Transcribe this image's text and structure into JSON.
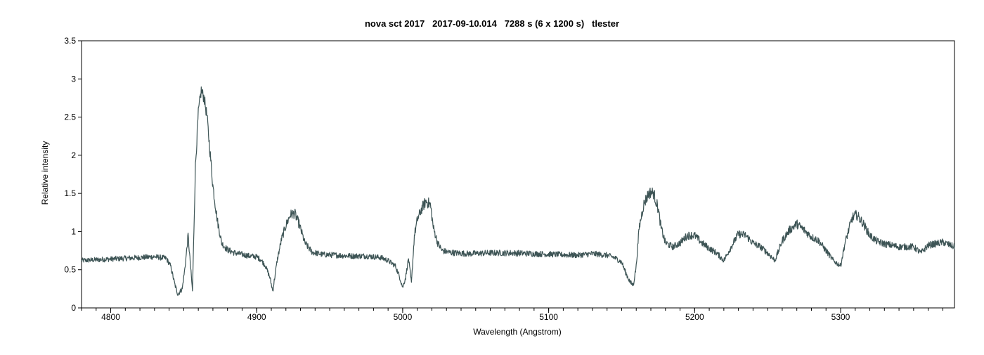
{
  "chart_data": {
    "type": "line",
    "title": "nova sct 2017   2017-09-10.014   7288 s (6 x 1200 s)   tlester",
    "xlabel": "Wavelength (Angstrom)",
    "ylabel": "Relative intensity",
    "xlim": [
      4780,
      5378
    ],
    "ylim": [
      0,
      3.5
    ],
    "xticks": [
      4800,
      4900,
      5000,
      5100,
      5200,
      5300
    ],
    "yticks": [
      0,
      0.5,
      1,
      1.5,
      2,
      2.5,
      3,
      3.5
    ],
    "ytick_labels": [
      "0",
      "0.5",
      "1",
      "1.5",
      "2",
      "2.5",
      "3",
      "3.5"
    ],
    "x_minor_step": 10,
    "grid": false,
    "line_color": "#3d5455",
    "series": [
      {
        "x": [
          4780,
          4790,
          4800,
          4810,
          4820,
          4830,
          4838,
          4841,
          4844,
          4846,
          4849,
          4851,
          4853,
          4856,
          4858,
          4860,
          4862,
          4864,
          4866,
          4868,
          4870,
          4873,
          4876,
          4880,
          4885,
          4890,
          4895,
          4900,
          4903,
          4906,
          4909,
          4911,
          4914,
          4917,
          4920,
          4923,
          4926,
          4929,
          4933,
          4938,
          4945,
          4955,
          4965,
          4975,
          4985,
          4990,
          4995,
          4998,
          5000,
          5002,
          5004,
          5006,
          5008,
          5010,
          5013,
          5016,
          5019,
          5021,
          5024,
          5027,
          5031,
          5036,
          5045,
          5060,
          5075,
          5090,
          5105,
          5120,
          5130,
          5140,
          5145,
          5150,
          5153,
          5156,
          5158,
          5160,
          5162,
          5165,
          5168,
          5170,
          5172,
          5175,
          5177,
          5180,
          5185,
          5190,
          5195,
          5200,
          5205,
          5210,
          5215,
          5220,
          5225,
          5230,
          5235,
          5240,
          5245,
          5250,
          5255,
          5260,
          5265,
          5270,
          5275,
          5280,
          5285,
          5290,
          5295,
          5300,
          5303,
          5306,
          5308,
          5311,
          5315,
          5320,
          5325,
          5330,
          5340,
          5350,
          5355,
          5360,
          5370,
          5378
        ],
        "y": [
          0.62,
          0.63,
          0.64,
          0.65,
          0.66,
          0.67,
          0.65,
          0.55,
          0.3,
          0.18,
          0.25,
          0.55,
          0.95,
          0.22,
          1.85,
          2.55,
          2.85,
          2.75,
          2.5,
          2.05,
          1.6,
          1.15,
          0.85,
          0.76,
          0.72,
          0.7,
          0.68,
          0.67,
          0.63,
          0.55,
          0.4,
          0.22,
          0.62,
          0.9,
          1.08,
          1.22,
          1.24,
          1.1,
          0.85,
          0.73,
          0.7,
          0.69,
          0.68,
          0.68,
          0.66,
          0.62,
          0.55,
          0.4,
          0.27,
          0.4,
          0.65,
          0.32,
          0.95,
          1.15,
          1.3,
          1.4,
          1.35,
          1.05,
          0.85,
          0.75,
          0.73,
          0.72,
          0.71,
          0.72,
          0.72,
          0.71,
          0.7,
          0.69,
          0.71,
          0.69,
          0.66,
          0.6,
          0.45,
          0.33,
          0.3,
          0.55,
          1.05,
          1.35,
          1.48,
          1.52,
          1.5,
          1.3,
          1.05,
          0.85,
          0.8,
          0.85,
          0.95,
          0.95,
          0.85,
          0.78,
          0.72,
          0.62,
          0.8,
          0.97,
          0.95,
          0.85,
          0.8,
          0.72,
          0.62,
          0.88,
          1.02,
          1.1,
          1.02,
          0.93,
          0.88,
          0.75,
          0.62,
          0.55,
          0.85,
          1.05,
          1.18,
          1.22,
          1.12,
          0.95,
          0.87,
          0.84,
          0.8,
          0.8,
          0.72,
          0.82,
          0.86,
          0.8
        ]
      }
    ]
  }
}
